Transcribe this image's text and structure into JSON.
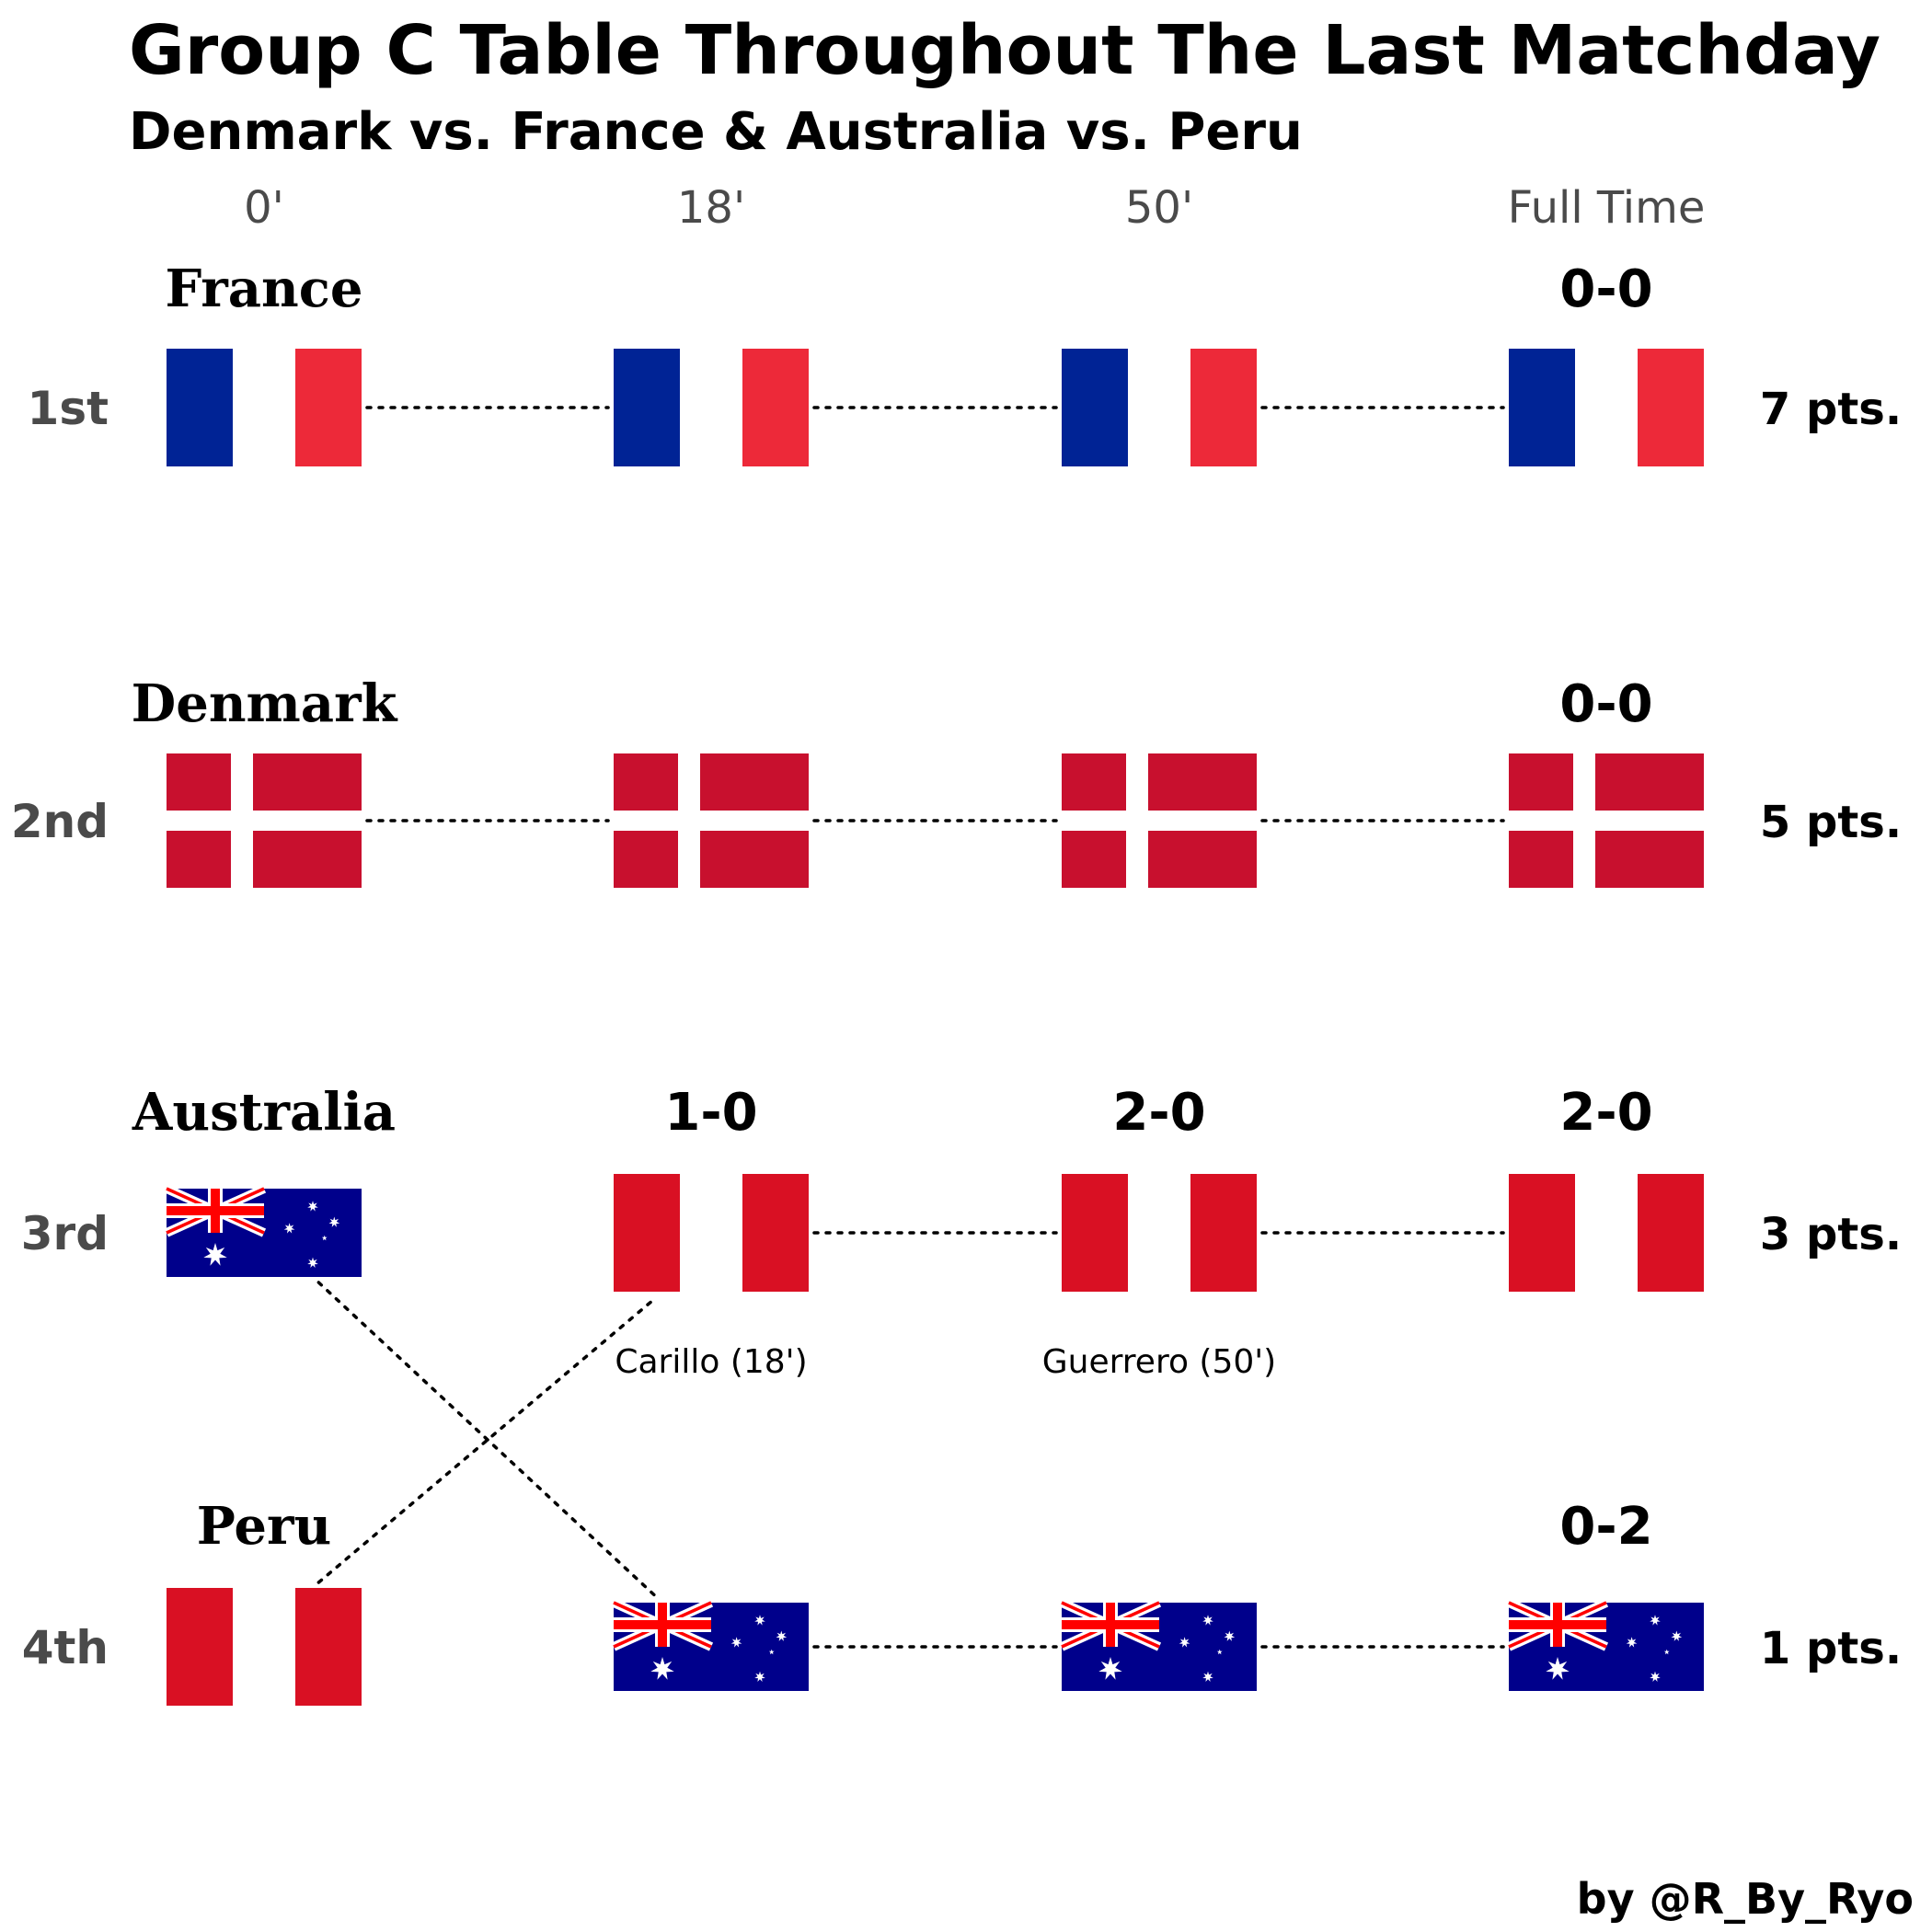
{
  "title": "Group C Table Throughout The Last Matchday",
  "subtitle": "Denmark vs. France & Australia vs. Peru",
  "credit": "by @R_By_Ryo",
  "chart_data": {
    "type": "bump",
    "x": [
      "0'",
      "18'",
      "50'",
      "Full Time"
    ],
    "ranks": [
      "1st",
      "2nd",
      "3rd",
      "4th"
    ],
    "points": [
      "7 pts.",
      "5 pts.",
      "3 pts.",
      "1 pts."
    ],
    "standings": [
      [
        "France",
        "France",
        "France",
        "France"
      ],
      [
        "Denmark",
        "Denmark",
        "Denmark",
        "Denmark"
      ],
      [
        "Australia",
        "Peru",
        "Peru",
        "Peru"
      ],
      [
        "Peru",
        "Australia",
        "Australia",
        "Australia"
      ]
    ],
    "team_labels": [
      "France",
      "Denmark",
      "Australia",
      "Peru"
    ],
    "scores": [
      [
        "",
        "",
        "",
        "0-0"
      ],
      [
        "",
        "",
        "",
        "0-0"
      ],
      [
        "",
        "1-0",
        "2-0",
        "2-0"
      ],
      [
        "",
        "",
        "",
        "0-2"
      ]
    ],
    "goals": [
      {
        "text": "Carillo (18')",
        "time_index": 1
      },
      {
        "text": "Guerrero (50')",
        "time_index": 2
      }
    ],
    "flag_colors": {
      "France": [
        "#002395",
        "#ffffff",
        "#ED2939"
      ],
      "Denmark": [
        "#C8102E",
        "#ffffff"
      ],
      "Peru": [
        "#D91023",
        "#ffffff"
      ],
      "Australia": [
        "#00008B",
        "#ffffff",
        "#FF0000"
      ]
    }
  }
}
